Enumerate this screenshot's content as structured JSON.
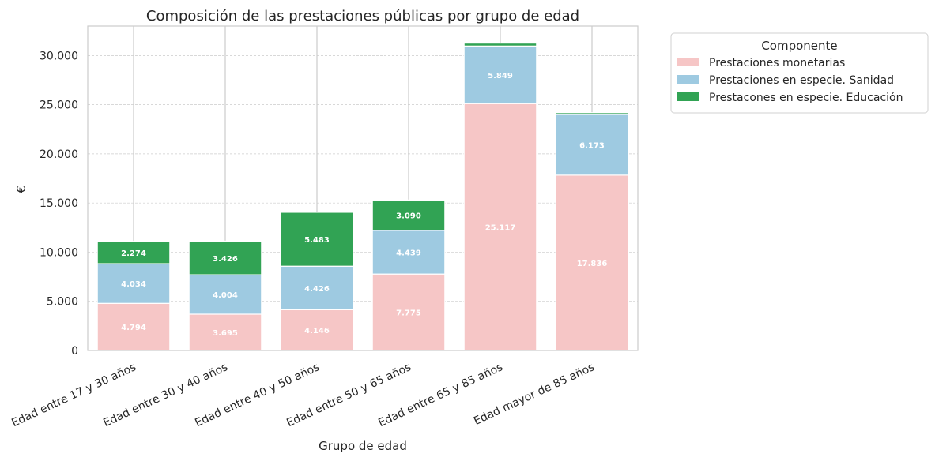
{
  "chart_data": {
    "type": "bar",
    "stacked": true,
    "title": "Composición de las prestaciones públicas por grupo de edad",
    "xlabel": "Grupo de edad",
    "ylabel": "€",
    "ylim": [
      0,
      33000
    ],
    "yticks": [
      0,
      5000,
      10000,
      15000,
      20000,
      25000,
      30000
    ],
    "ytick_labels": [
      "0",
      "5.000",
      "10.000",
      "15.000",
      "20.000",
      "25.000",
      "30.000"
    ],
    "categories": [
      "Edad entre 17 y 30 años",
      "Edad entre 30 y 40 años",
      "Edad entre 40 y 50 años",
      "Edad entre 50 y 65 años",
      "Edad entre 65 y 85 años",
      "Edad  mayor de 85 años"
    ],
    "series": [
      {
        "name": "Prestaciones monetarias",
        "color": "#f6c6c6",
        "values": [
          4794,
          3695,
          4146,
          7775,
          25117,
          17836
        ],
        "labels": [
          "4.794",
          "3.695",
          "4.146",
          "7.775",
          "25.117",
          "17.836"
        ]
      },
      {
        "name": "Prestaciones en especie. Sanidad",
        "color": "#9ecae1",
        "values": [
          4034,
          4004,
          4426,
          4439,
          5849,
          6173
        ],
        "labels": [
          "4.034",
          "4.004",
          "4.426",
          "4.439",
          "5.849",
          "6.173"
        ]
      },
      {
        "name": "Prestacones en especie. Educación",
        "color": "#31a354",
        "values": [
          2274,
          3426,
          5483,
          3090,
          300,
          180
        ],
        "labels": [
          "2.274",
          "3.426",
          "5.483",
          "3.090",
          "",
          ""
        ]
      }
    ],
    "grid": true,
    "legend": {
      "title": "Componente",
      "placement": "outside-top-right"
    }
  }
}
